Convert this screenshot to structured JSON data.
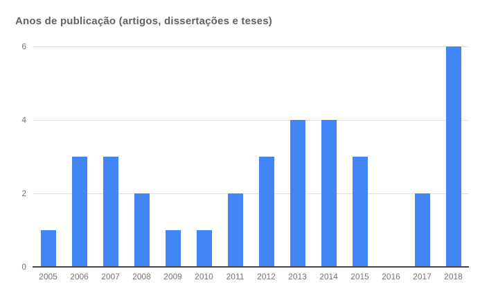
{
  "chart_data": {
    "type": "bar",
    "title": "Anos de publicação (artigos, dissertações e teses)",
    "categories": [
      "2005",
      "2006",
      "2007",
      "2008",
      "2009",
      "2010",
      "2011",
      "2012",
      "2013",
      "2014",
      "2015",
      "2016",
      "2017",
      "2018"
    ],
    "values": [
      1,
      3,
      3,
      2,
      1,
      1,
      2,
      3,
      4,
      4,
      3,
      0,
      2,
      6
    ],
    "xlabel": "",
    "ylabel": "",
    "ylim": [
      0,
      6
    ],
    "yticks": [
      0,
      2,
      4,
      6
    ],
    "grid": true,
    "legend": "none",
    "colors": {
      "bar": "#4285f4",
      "title_text": "#616161",
      "axis_text": "#757575",
      "gridline": "#e0e0e0",
      "baseline": "#424242",
      "background": "#ffffff"
    }
  }
}
